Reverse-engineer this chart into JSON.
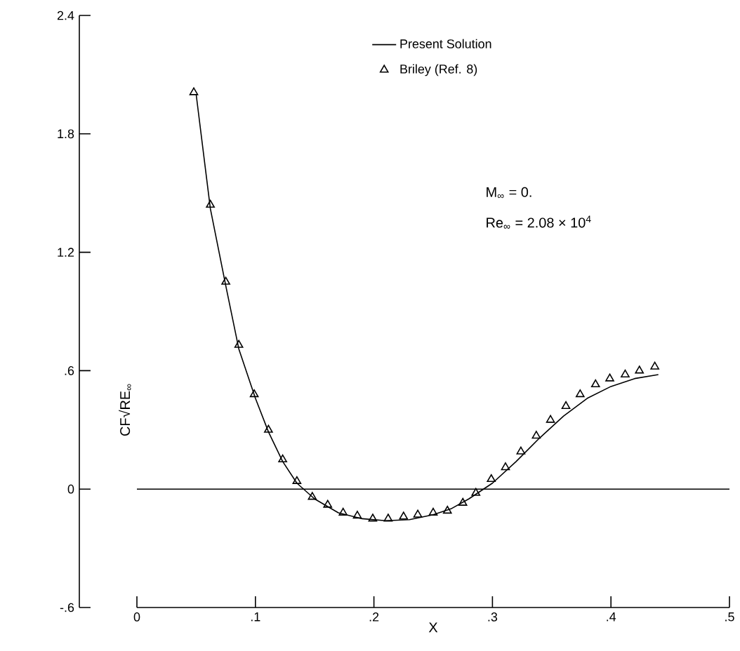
{
  "chart_data": {
    "type": "line",
    "xlabel": "X",
    "ylabel": "CF√RE$_{∞}$",
    "xlim": [
      0,
      0.5
    ],
    "ylim": [
      -0.6,
      2.4
    ],
    "xticks": [
      0,
      {
        "value": 0.1,
        "label": ".1"
      },
      {
        "value": 0.2,
        "label": ".2"
      },
      {
        "value": 0.3,
        "label": ".3"
      },
      {
        "value": 0.4,
        "label": ".4"
      },
      {
        "value": 0.5,
        "label": ".5"
      }
    ],
    "yticks": [
      {
        "value": -0.6,
        "label": "-.6"
      },
      0,
      {
        "value": 0.6,
        "label": ".6"
      },
      1.2,
      1.8,
      2.4
    ],
    "legend": "top",
    "grid": false,
    "ref_lines": [
      {
        "axis": "y",
        "value": 0
      }
    ],
    "annotations": [
      "M$_{∞}$ = 0.",
      "Re$_{∞}$ = 2.08 × 10$^{4}$"
    ],
    "series": [
      {
        "name": "Present Solution",
        "type": "line",
        "color": "#000000",
        "marker": "none",
        "line_style": "solid",
        "x": [
          0.05,
          0.062,
          0.075,
          0.086,
          0.1,
          0.111,
          0.123,
          0.135,
          0.15,
          0.17,
          0.19,
          0.21,
          0.23,
          0.25,
          0.265,
          0.28,
          0.29,
          0.3,
          0.32,
          0.34,
          0.36,
          0.38,
          0.4,
          0.42,
          0.44
        ],
        "values": [
          2.0,
          1.42,
          1.03,
          0.71,
          0.46,
          0.29,
          0.14,
          0.03,
          -0.05,
          -0.12,
          -0.15,
          -0.16,
          -0.155,
          -0.13,
          -0.1,
          -0.05,
          -0.01,
          0.03,
          0.14,
          0.26,
          0.37,
          0.46,
          0.52,
          0.56,
          0.58
        ]
      },
      {
        "name": "Briley (Ref. 8)",
        "type": "scatter",
        "color": "#000000",
        "marker": "triangle",
        "x": [
          0.048,
          0.062,
          0.075,
          0.086,
          0.099,
          0.111,
          0.123,
          0.135,
          0.148,
          0.161,
          0.174,
          0.186,
          0.199,
          0.212,
          0.225,
          0.237,
          0.25,
          0.262,
          0.275,
          0.286,
          0.299,
          0.311,
          0.324,
          0.337,
          0.349,
          0.362,
          0.374,
          0.387,
          0.399,
          0.412,
          0.424,
          0.437
        ],
        "values": [
          2.01,
          1.44,
          1.05,
          0.73,
          0.48,
          0.3,
          0.15,
          0.04,
          -0.04,
          -0.08,
          -0.12,
          -0.135,
          -0.15,
          -0.15,
          -0.14,
          -0.13,
          -0.12,
          -0.11,
          -0.07,
          -0.02,
          0.05,
          0.11,
          0.19,
          0.27,
          0.35,
          0.42,
          0.48,
          0.53,
          0.56,
          0.58,
          0.6,
          0.62
        ]
      }
    ]
  }
}
